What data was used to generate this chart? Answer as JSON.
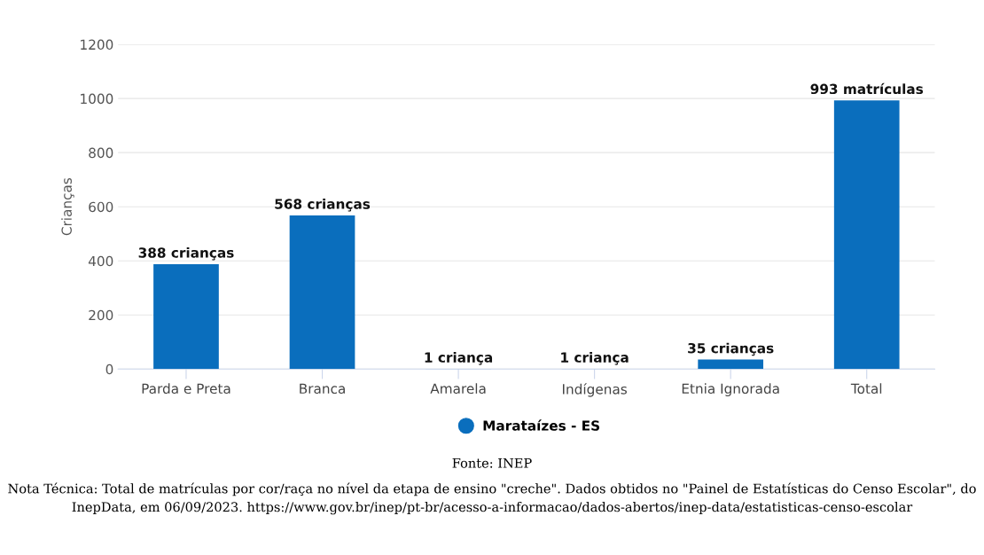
{
  "chart_data": {
    "type": "bar",
    "ylabel": "Crianças",
    "categories": [
      "Parda e Preta",
      "Branca",
      "Amarela",
      "Indígenas",
      "Etnia Ignorada",
      "Total"
    ],
    "series": [
      {
        "name": "Marataízes - ES",
        "color": "#0a6ebd",
        "values": [
          388,
          568,
          1,
          1,
          35,
          993
        ],
        "value_labels": [
          "388 crianças",
          "568 crianças",
          "1 criança",
          "1 criança",
          "35 crianças",
          "993 matrículas"
        ]
      }
    ],
    "ylim": [
      0,
      1200
    ],
    "yticks": [
      0,
      200,
      400,
      600,
      800,
      1000,
      1200
    ],
    "grid": "y",
    "legend": "bottom",
    "annotations": [
      "Fonte: INEP",
      "Nota Técnica: Total de matrículas por cor/raça no nível da etapa de ensino \"creche\". Dados obtidos no \"Painel de Estatísticas do Censo Escolar\", do InepData, em 06/09/2023. https://www.gov.br/inep/pt-br/acesso-a-informacao/dados-abertos/inep-data/estatisticas-censo-escolar"
    ]
  }
}
